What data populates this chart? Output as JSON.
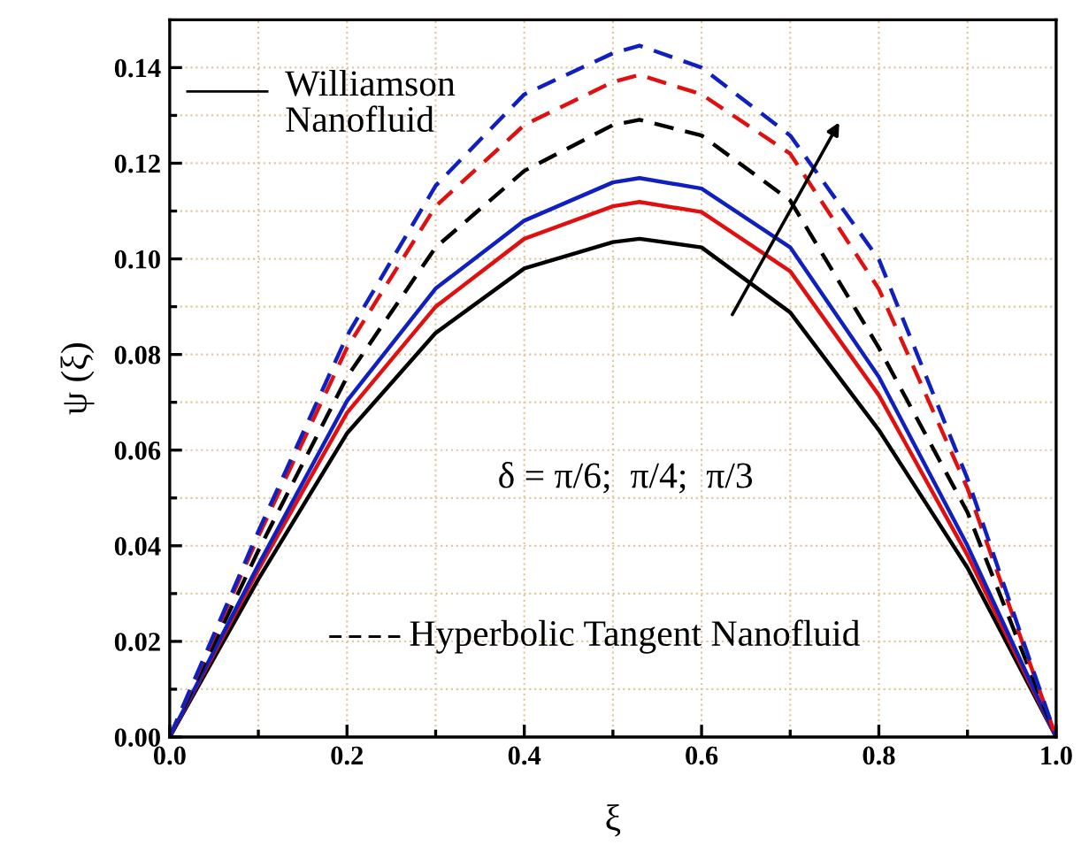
{
  "chart_data": {
    "type": "line",
    "xlabel": "ξ",
    "ylabel": "ψ (ξ)",
    "x": [
      0,
      0.1,
      0.2,
      0.3,
      0.4,
      0.5,
      0.53,
      0.6,
      0.7,
      0.8,
      0.9,
      1.0
    ],
    "series": [
      {
        "color": "#000000",
        "line_style": "solid",
        "values": [
          0,
          0.033,
          0.0635,
          0.0845,
          0.098,
          0.1035,
          0.1042,
          0.1024,
          0.0888,
          0.0642,
          0.0354,
          0
        ]
      },
      {
        "color": "#e01010",
        "line_style": "solid",
        "values": [
          0,
          0.035,
          0.0678,
          0.09,
          0.1042,
          0.111,
          0.1119,
          0.1098,
          0.0974,
          0.0715,
          0.038,
          0
        ]
      },
      {
        "color": "#1020c0",
        "line_style": "solid",
        "values": [
          0,
          0.036,
          0.0703,
          0.0938,
          0.108,
          0.116,
          0.1169,
          0.1147,
          0.1024,
          0.0753,
          0.04,
          0
        ]
      },
      {
        "color": "#000000",
        "line_style": "dashed",
        "values": [
          0,
          0.039,
          0.0753,
          0.1024,
          0.1184,
          0.128,
          0.1291,
          0.1258,
          0.1122,
          0.0814,
          0.047,
          0
        ]
      },
      {
        "color": "#e01010",
        "line_style": "dashed",
        "values": [
          0,
          0.042,
          0.0814,
          0.111,
          0.128,
          0.137,
          0.1385,
          0.1344,
          0.122,
          0.0937,
          0.052,
          0
        ]
      },
      {
        "color": "#1020c0",
        "line_style": "dashed",
        "values": [
          0,
          0.043,
          0.0839,
          0.1153,
          0.1344,
          0.143,
          0.1446,
          0.14,
          0.1258,
          0.0999,
          0.054,
          0
        ]
      }
    ],
    "xlim": [
      0,
      1.0
    ],
    "ylim": [
      0,
      0.15
    ],
    "xticks": [
      {
        "value": 0,
        "label": "0.0"
      },
      0.2,
      0.4,
      0.6,
      0.8,
      {
        "value": 1.0,
        "label": "1.0"
      }
    ],
    "yticks": [
      {
        "value": 0,
        "label": "0.00"
      },
      {
        "value": 0.02,
        "label": "0.02"
      },
      {
        "value": 0.04,
        "label": "0.04"
      },
      {
        "value": 0.06,
        "label": "0.06"
      },
      {
        "value": 0.08,
        "label": "0.08"
      },
      {
        "value": 0.1,
        "label": "0.10"
      },
      {
        "value": 0.12,
        "label": "0.12"
      },
      {
        "value": 0.14,
        "label": "0.14"
      }
    ],
    "grid": true,
    "annotations": [
      "Williamson\nNanofluid",
      "Hyperbolic Tangent Nanofluid",
      "δ = π/6;  π/4;  π/3"
    ]
  }
}
